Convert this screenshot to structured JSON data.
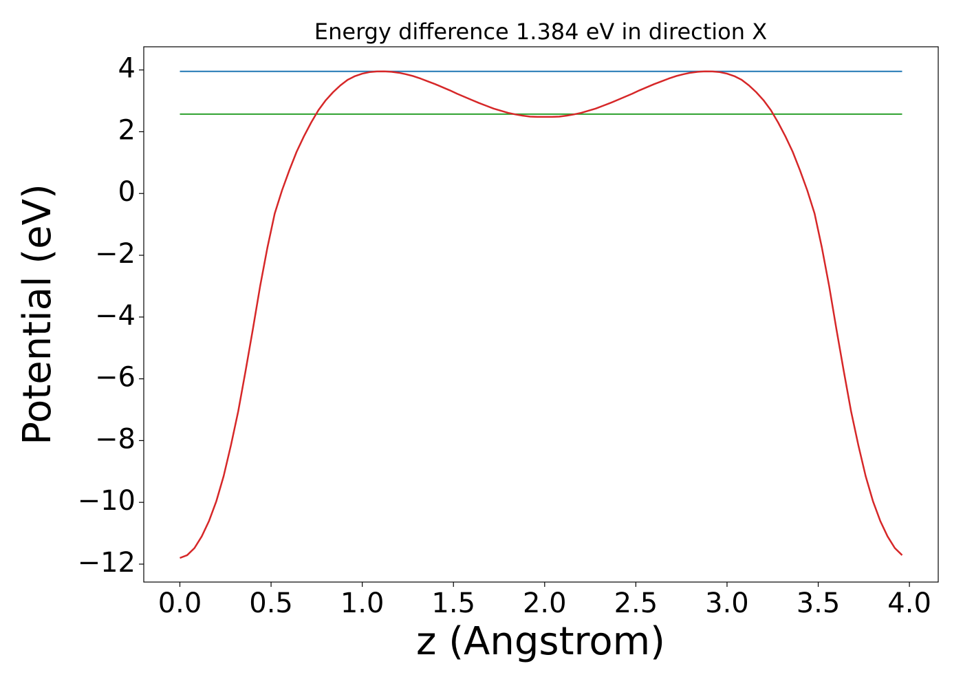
{
  "chart_data": {
    "type": "line",
    "title": "Energy difference 1.384 eV in direction X",
    "x_label": "z (Angstrom)",
    "y_label": "Potential (eV)",
    "x": [
      0,
      0.04,
      0.08,
      0.12,
      0.16,
      0.2,
      0.24,
      0.28,
      0.32,
      0.36,
      0.4,
      0.44,
      0.48,
      0.52,
      0.56,
      0.6,
      0.64,
      0.68,
      0.72,
      0.76,
      0.8,
      0.84,
      0.88,
      0.92,
      0.96,
      1,
      1.04,
      1.08,
      1.12,
      1.16,
      1.2,
      1.24,
      1.28,
      1.32,
      1.36,
      1.4,
      1.44,
      1.48,
      1.52,
      1.56,
      1.6,
      1.64,
      1.68,
      1.72,
      1.76,
      1.8,
      1.84,
      1.88,
      1.92,
      1.96,
      2,
      2.04,
      2.08,
      2.12,
      2.16,
      2.2,
      2.24,
      2.28,
      2.32,
      2.36,
      2.4,
      2.44,
      2.48,
      2.52,
      2.56,
      2.6,
      2.64,
      2.68,
      2.72,
      2.76,
      2.8,
      2.84,
      2.88,
      2.92,
      2.96,
      3,
      3.04,
      3.08,
      3.12,
      3.16,
      3.2,
      3.24,
      3.28,
      3.32,
      3.36,
      3.4,
      3.44,
      3.48,
      3.52,
      3.56,
      3.6,
      3.64,
      3.68,
      3.72,
      3.76,
      3.8,
      3.84,
      3.88,
      3.92,
      3.96
    ],
    "series": [
      {
        "color": "#d62728",
        "values": [
          -11.8,
          -11.71,
          -11.48,
          -11.1,
          -10.6,
          -9.96,
          -9.15,
          -8.15,
          -7.05,
          -5.75,
          -4.4,
          -3.0,
          -1.75,
          -0.65,
          0.1,
          0.75,
          1.35,
          1.85,
          2.3,
          2.7,
          3.02,
          3.28,
          3.5,
          3.68,
          3.8,
          3.88,
          3.93,
          3.95,
          3.955,
          3.94,
          3.91,
          3.86,
          3.8,
          3.72,
          3.63,
          3.54,
          3.44,
          3.34,
          3.23,
          3.13,
          3.03,
          2.93,
          2.84,
          2.75,
          2.68,
          2.61,
          2.56,
          2.52,
          2.49,
          2.48,
          2.48,
          2.48,
          2.49,
          2.52,
          2.56,
          2.61,
          2.68,
          2.75,
          2.84,
          2.93,
          3.03,
          3.13,
          3.23,
          3.34,
          3.44,
          3.54,
          3.63,
          3.72,
          3.8,
          3.86,
          3.91,
          3.94,
          3.955,
          3.95,
          3.93,
          3.88,
          3.8,
          3.68,
          3.5,
          3.28,
          3.02,
          2.7,
          2.3,
          1.85,
          1.35,
          0.75,
          0.1,
          -0.65,
          -1.75,
          -3.0,
          -4.4,
          -5.75,
          -7.05,
          -8.15,
          -9.15,
          -9.96,
          -10.6,
          -11.1,
          -11.48,
          -11.71
        ]
      }
    ],
    "reference_lines": [
      {
        "value": 3.955,
        "color": "#1f77b4"
      },
      {
        "value": 2.571,
        "color": "#2ca02c"
      }
    ],
    "xlim": [
      -0.198,
      4.158
    ],
    "ylim": [
      -12.58,
      4.75
    ],
    "xticks": [
      {
        "value": 0,
        "label": "0.0"
      },
      {
        "value": 0.5,
        "label": "0.5"
      },
      {
        "value": 1,
        "label": "1.0"
      },
      {
        "value": 1.5,
        "label": "1.5"
      },
      {
        "value": 2,
        "label": "2.0"
      },
      {
        "value": 2.5,
        "label": "2.5"
      },
      {
        "value": 3,
        "label": "3.0"
      },
      {
        "value": 3.5,
        "label": "3.5"
      },
      {
        "value": 4,
        "label": "4.0"
      }
    ],
    "yticks": [
      {
        "value": -12,
        "label": "−12"
      },
      {
        "value": -10,
        "label": "−10"
      },
      {
        "value": -8,
        "label": "−8"
      },
      {
        "value": -6,
        "label": "−6"
      },
      {
        "value": -4,
        "label": "−4"
      },
      {
        "value": -2,
        "label": "−2"
      },
      0,
      2,
      4
    ],
    "grid": false
  }
}
